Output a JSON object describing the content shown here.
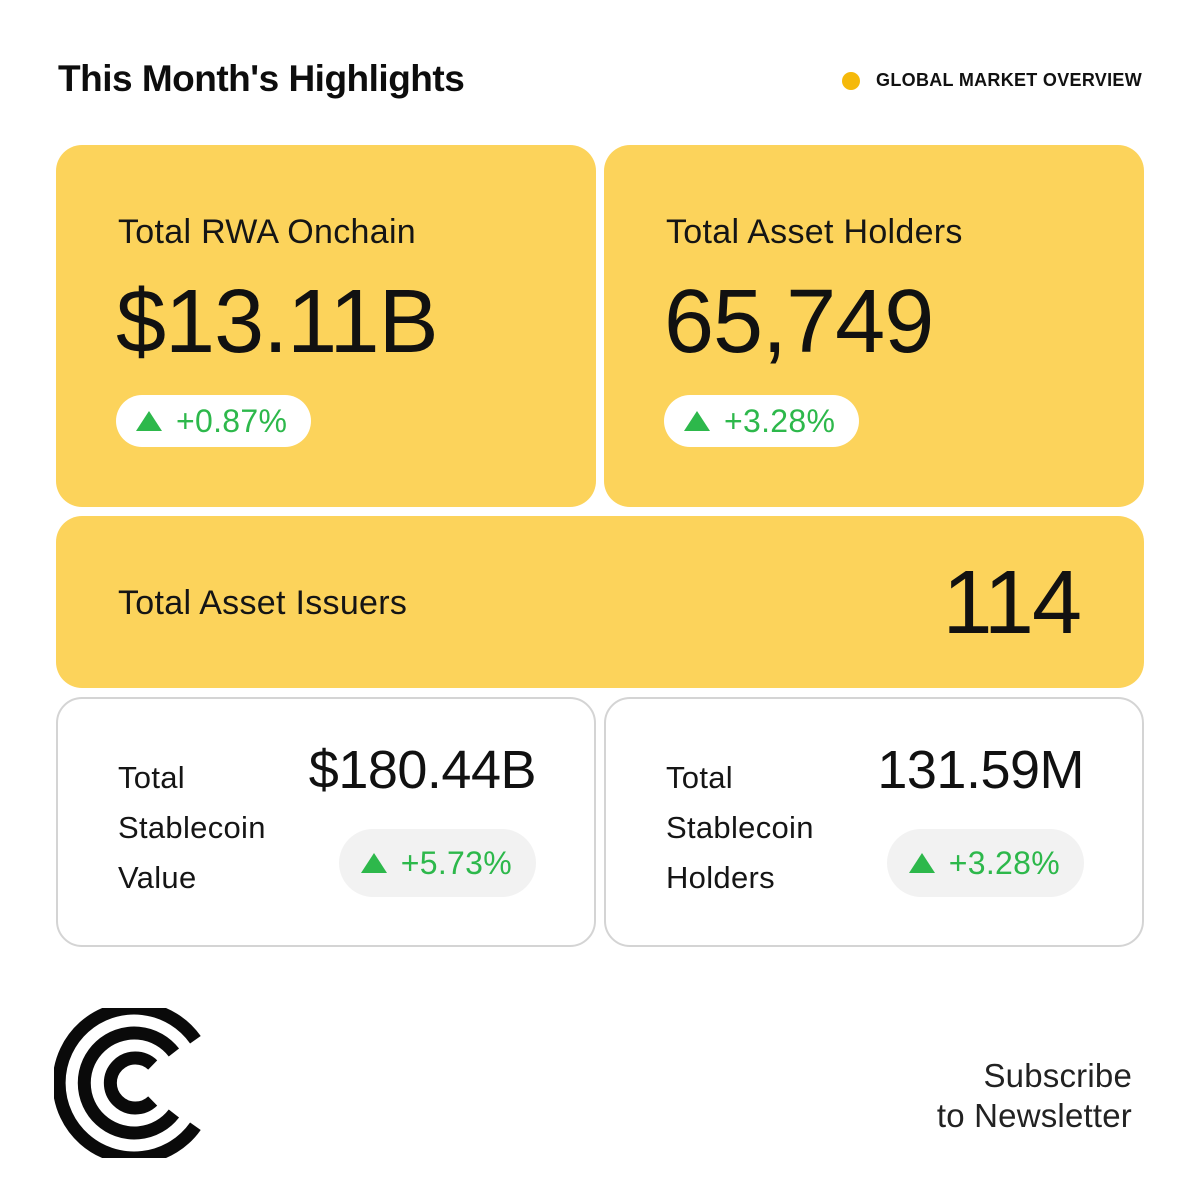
{
  "header": {
    "title": "This Month's Highlights",
    "tag_label": "GLOBAL MARKET OVERVIEW",
    "tag_color": "#f5b90a"
  },
  "cards": {
    "rwa": {
      "label": "Total RWA Onchain",
      "value": "$13.11B",
      "change": "+0.87%"
    },
    "holders": {
      "label": "Total Asset Holders",
      "value": "65,749",
      "change": "+3.28%"
    },
    "issuers": {
      "label": "Total Asset Issuers",
      "value": "114"
    },
    "stable_value": {
      "label_lines": [
        "Total",
        "Stablecoin",
        "Value"
      ],
      "value": "$180.44B",
      "change": "+5.73%"
    },
    "stable_holders": {
      "label_lines": [
        "Total",
        "Stablecoin",
        "Holders"
      ],
      "value": "131.59M",
      "change": "+3.28%"
    }
  },
  "footer": {
    "logo_icon": "brand-arc-logo-icon",
    "subscribe_lines": [
      "Subscribe",
      "to Newsletter"
    ]
  },
  "colors": {
    "card_yellow": "#fcd35b",
    "positive_green": "#2db84b",
    "card_border": "#d4d4d4"
  }
}
